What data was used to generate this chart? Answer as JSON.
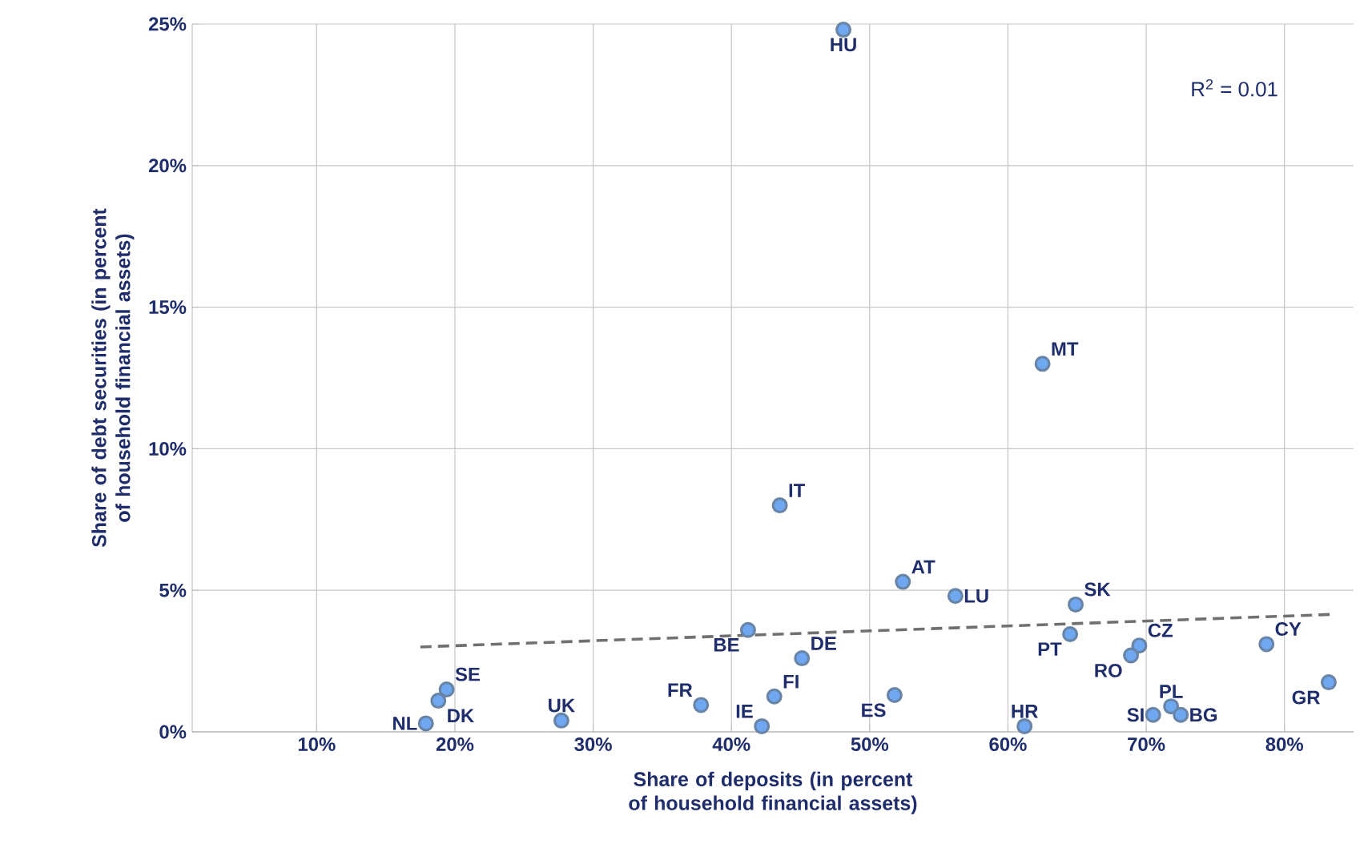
{
  "chart_data": {
    "type": "scatter",
    "xlabel": "Share of deposits (in percent of household financial assets)",
    "ylabel": "Share of debt securities (in percent of household financial assets)",
    "xlim": [
      1,
      85
    ],
    "ylim": [
      0,
      25
    ],
    "xticks": [
      {
        "value": 10,
        "label": "10%"
      },
      {
        "value": 20,
        "label": "20%"
      },
      {
        "value": 30,
        "label": "30%"
      },
      {
        "value": 40,
        "label": "40%"
      },
      {
        "value": 50,
        "label": "50%"
      },
      {
        "value": 60,
        "label": "60%"
      },
      {
        "value": 70,
        "label": "70%"
      },
      {
        "value": 80,
        "label": "80%"
      }
    ],
    "yticks": [
      {
        "value": 0,
        "label": "0%"
      },
      {
        "value": 5,
        "label": "5%"
      },
      {
        "value": 10,
        "label": "10%"
      },
      {
        "value": 15,
        "label": "15%"
      },
      {
        "value": 20,
        "label": "20%"
      },
      {
        "value": 25,
        "label": "25%"
      }
    ],
    "grid": true,
    "marker": "circle",
    "annotations": [
      "R$^{2}$ = 0.01"
    ],
    "series": [
      {
        "name": "HU",
        "color": "#6fa8f0",
        "x": [
          48.1
        ],
        "values": [
          24.8
        ]
      },
      {
        "name": "MT",
        "color": "#6fa8f0",
        "x": [
          62.5
        ],
        "values": [
          13.0
        ]
      },
      {
        "name": "IT",
        "color": "#6fa8f0",
        "x": [
          43.5
        ],
        "values": [
          8.0
        ]
      },
      {
        "name": "AT",
        "color": "#6fa8f0",
        "x": [
          52.4
        ],
        "values": [
          5.3
        ]
      },
      {
        "name": "LU",
        "color": "#6fa8f0",
        "x": [
          56.2
        ],
        "values": [
          4.8
        ]
      },
      {
        "name": "SK",
        "color": "#6fa8f0",
        "x": [
          64.9
        ],
        "values": [
          4.5
        ]
      },
      {
        "name": "BE",
        "color": "#6fa8f0",
        "x": [
          41.2
        ],
        "values": [
          3.6
        ]
      },
      {
        "name": "PT",
        "color": "#6fa8f0",
        "x": [
          64.5
        ],
        "values": [
          3.45
        ]
      },
      {
        "name": "CZ",
        "color": "#6fa8f0",
        "x": [
          69.5
        ],
        "values": [
          3.05
        ]
      },
      {
        "name": "RO",
        "color": "#6fa8f0",
        "x": [
          68.9
        ],
        "values": [
          2.7
        ]
      },
      {
        "name": "CY",
        "color": "#6fa8f0",
        "x": [
          78.7
        ],
        "values": [
          3.1
        ]
      },
      {
        "name": "DE",
        "color": "#6fa8f0",
        "x": [
          45.1
        ],
        "values": [
          2.6
        ]
      },
      {
        "name": "GR",
        "color": "#6fa8f0",
        "x": [
          83.2
        ],
        "values": [
          1.75
        ]
      },
      {
        "name": "SE",
        "color": "#6fa8f0",
        "x": [
          19.4
        ],
        "values": [
          1.5
        ]
      },
      {
        "name": "DK",
        "color": "#6fa8f0",
        "x": [
          18.8
        ],
        "values": [
          1.1
        ]
      },
      {
        "name": "FI",
        "color": "#6fa8f0",
        "x": [
          43.1
        ],
        "values": [
          1.25
        ]
      },
      {
        "name": "ES",
        "color": "#6fa8f0",
        "x": [
          51.8
        ],
        "values": [
          1.3
        ]
      },
      {
        "name": "FR",
        "color": "#6fa8f0",
        "x": [
          37.8
        ],
        "values": [
          0.95
        ]
      },
      {
        "name": "UK",
        "color": "#6fa8f0",
        "x": [
          27.7
        ],
        "values": [
          0.4
        ]
      },
      {
        "name": "NL",
        "color": "#6fa8f0",
        "x": [
          17.9
        ],
        "values": [
          0.3
        ]
      },
      {
        "name": "IE",
        "color": "#6fa8f0",
        "x": [
          42.2
        ],
        "values": [
          0.2
        ]
      },
      {
        "name": "HR",
        "color": "#6fa8f0",
        "x": [
          61.2
        ],
        "values": [
          0.2
        ]
      },
      {
        "name": "SI",
        "color": "#6fa8f0",
        "x": [
          70.5
        ],
        "values": [
          0.6
        ]
      },
      {
        "name": "PL",
        "color": "#6fa8f0",
        "x": [
          71.8
        ],
        "values": [
          0.9
        ]
      },
      {
        "name": "BG",
        "color": "#6fa8f0",
        "x": [
          72.5
        ],
        "values": [
          0.6
        ]
      },
      {
        "type": "line",
        "color": "#707070",
        "line_style": "dashed",
        "marker": "none",
        "x": [
          17.5,
          83.5
        ],
        "values": [
          3.0,
          4.15
        ]
      }
    ]
  }
}
